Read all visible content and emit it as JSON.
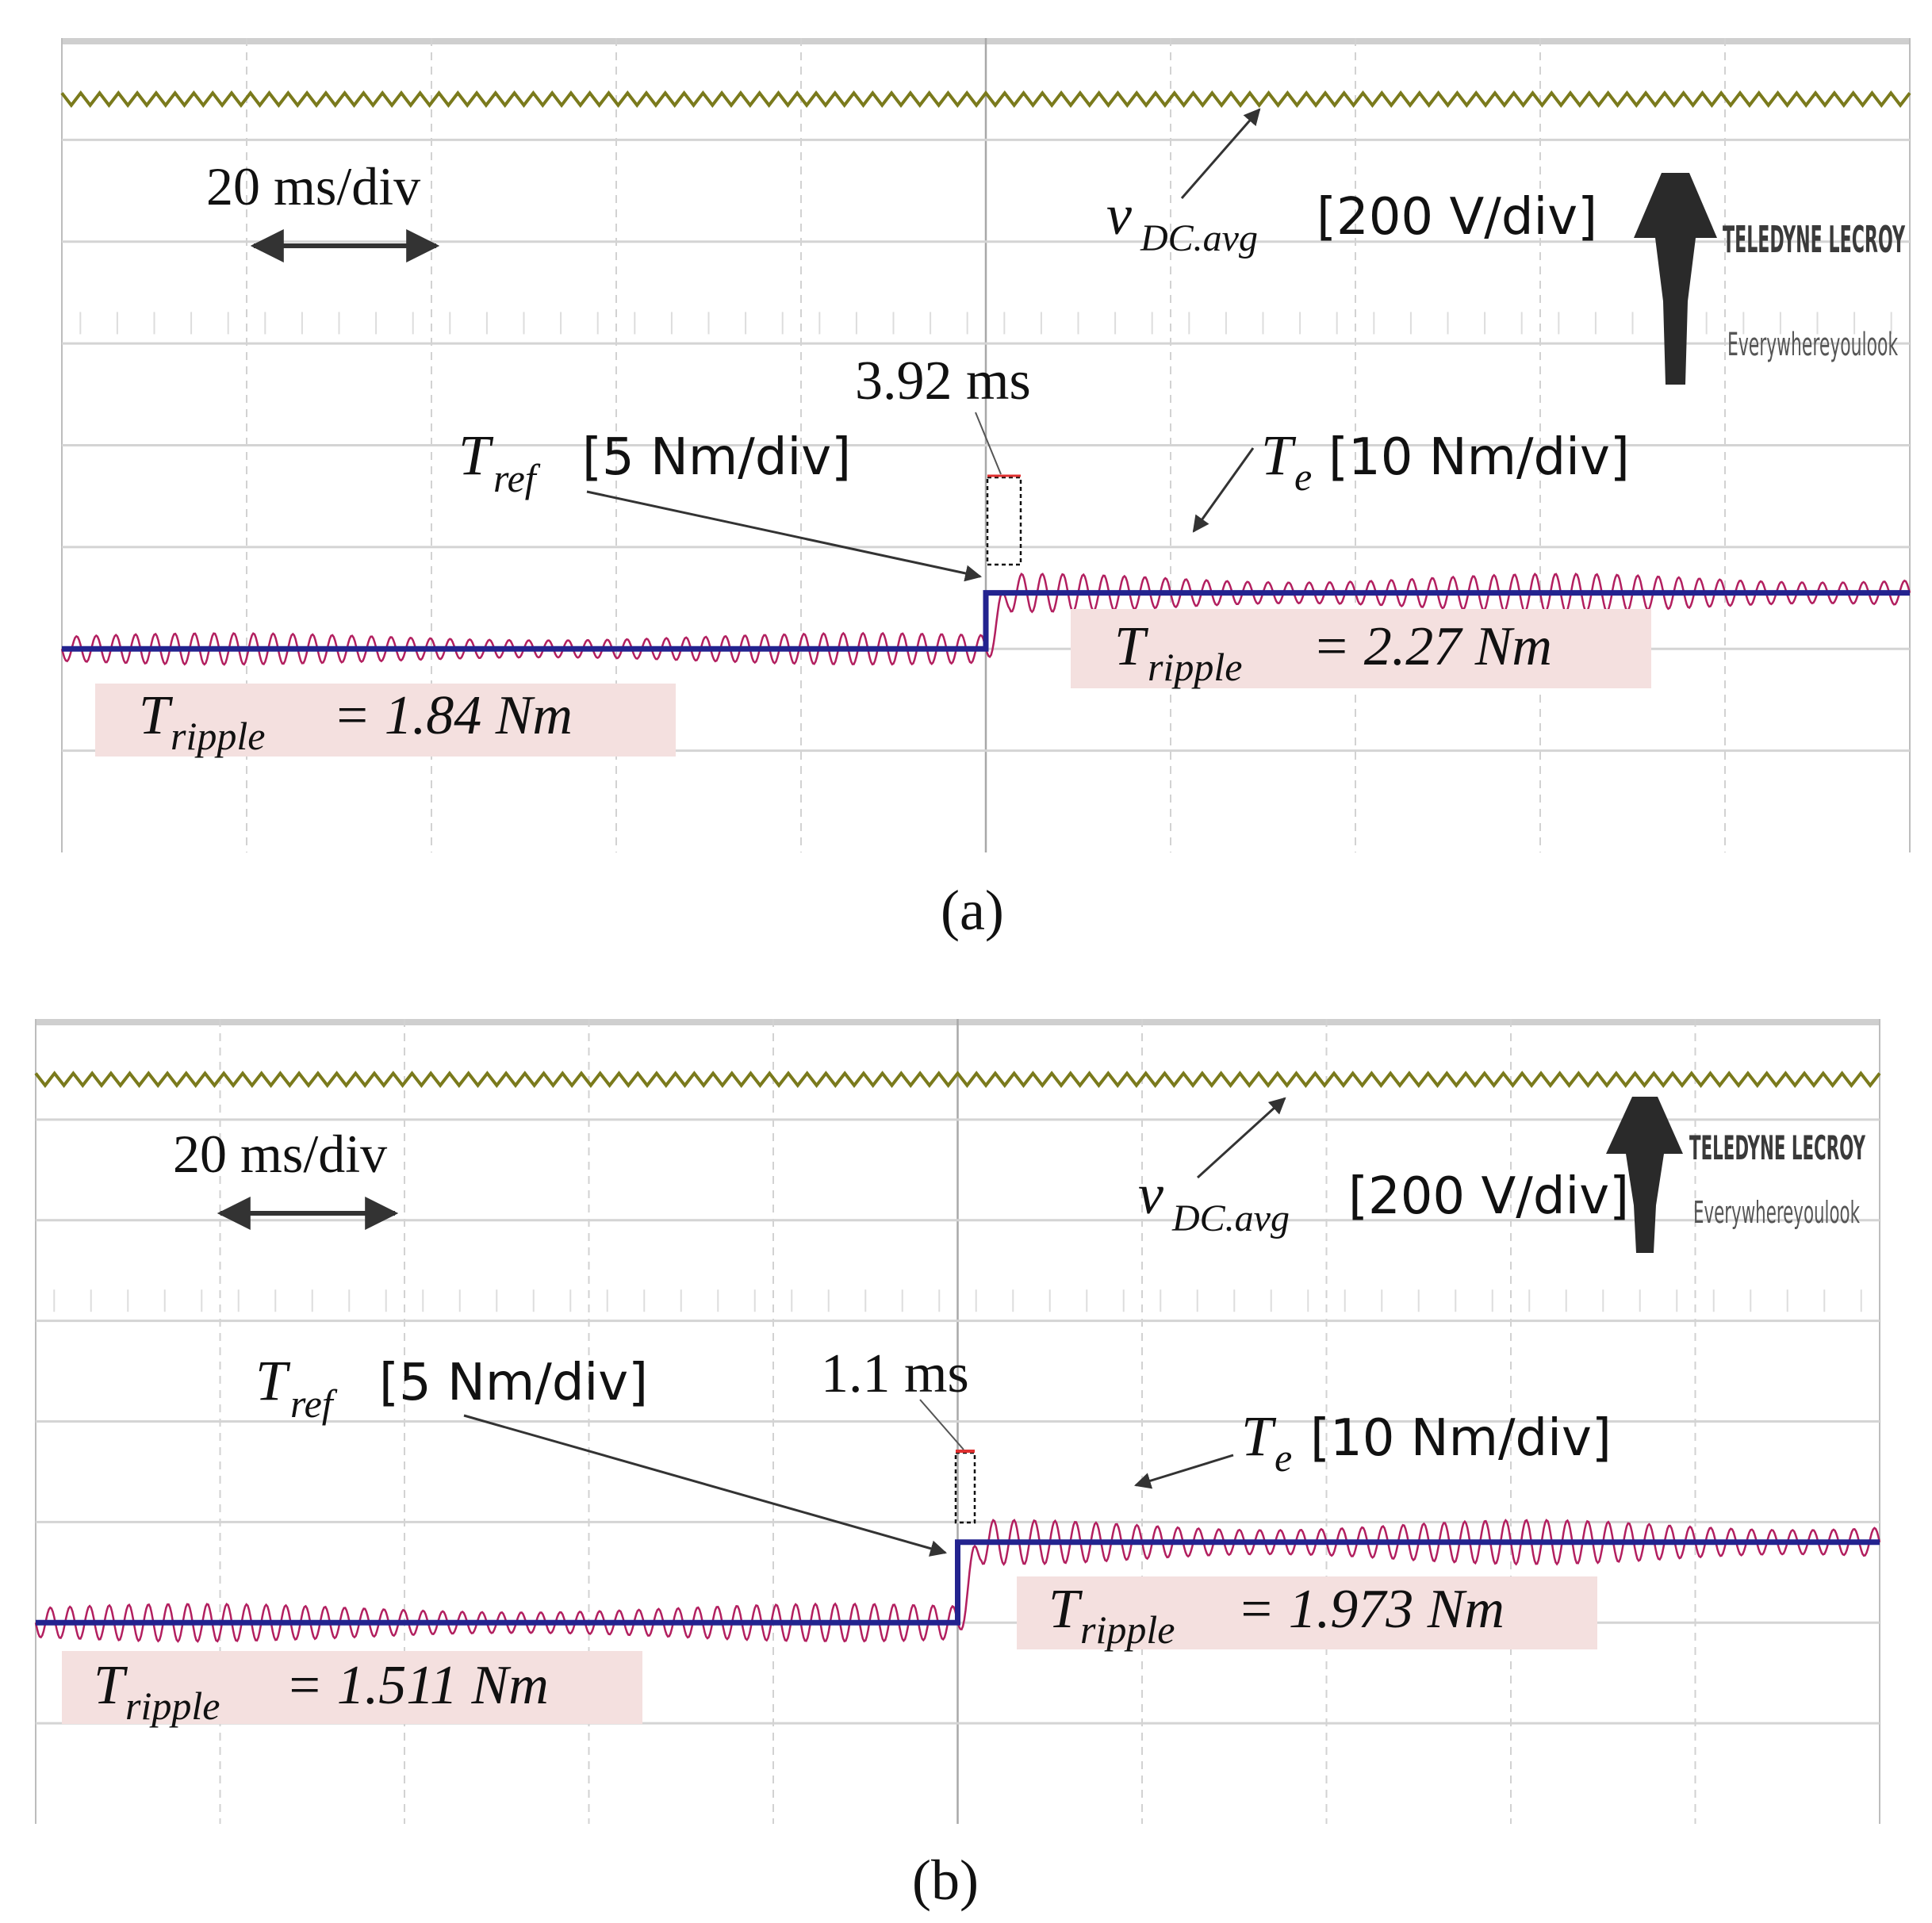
{
  "figure": {
    "panels": [
      {
        "caption": "(a)",
        "timebase_label": "20 ms/div",
        "vdc_label": {
          "symbol": "v",
          "subscript": "DC.avg",
          "scale": "[200 V/div]"
        },
        "tref_label": {
          "symbol": "T",
          "subscript": "ref",
          "scale": "[5 Nm/div]"
        },
        "te_label": {
          "symbol": "T",
          "subscript": "e",
          "scale": "[10 Nm/div]"
        },
        "response_time": "3.92 ms",
        "ripple_before": {
          "symbol": "T",
          "subscript": "ripple",
          "value_text": "= 1.84 Nm"
        },
        "ripple_after": {
          "symbol": "T",
          "subscript": "ripple",
          "value_text": "= 2.27 Nm"
        },
        "logo": {
          "line1": "TELEDYNE LECROY",
          "line2": "Everywhereyoulook"
        }
      },
      {
        "caption": "(b)",
        "timebase_label": "20 ms/div",
        "vdc_label": {
          "symbol": "v",
          "subscript": "DC.avg",
          "scale": "[200 V/div]"
        },
        "tref_label": {
          "symbol": "T",
          "subscript": "ref",
          "scale": "[5 Nm/div]"
        },
        "te_label": {
          "symbol": "T",
          "subscript": "e",
          "scale": "[10 Nm/div]"
        },
        "response_time": "1.1 ms",
        "ripple_before": {
          "symbol": "T",
          "subscript": "ripple",
          "value_text": "= 1.511 Nm"
        },
        "ripple_after": {
          "symbol": "T",
          "subscript": "ripple",
          "value_text": "= 1.973 Nm"
        },
        "logo": {
          "line1": "TELEDYNE LECROY",
          "line2": "Everywhereyoulook"
        }
      }
    ]
  },
  "chart_data": [
    {
      "type": "line",
      "panel": "(a)",
      "time_per_div_ms": 20,
      "x_divisions": 10,
      "y_divisions": 8,
      "grid": true,
      "step_time_div": 5,
      "series": [
        {
          "name": "vDC.avg",
          "scale": "200 V/div",
          "level_div": 7.4,
          "ripple_amp_div": 0.06,
          "ripple_cycles": 98,
          "color": "#7a7a1c"
        },
        {
          "name": "Tref",
          "scale": "5 Nm/div",
          "before_div": 2.0,
          "after_div": 2.55,
          "color": "#23238f"
        },
        {
          "name": "Te",
          "scale": "10 Nm/div",
          "before_div": 2.0,
          "after_div": 2.55,
          "ripple_amp_before_div": 0.14,
          "ripple_amp_after_div": 0.17,
          "ripple_cycles_before": 47,
          "ripple_cycles_after": 45,
          "color": "#b21f5f"
        }
      ],
      "annotations": {
        "response_time_ms": 3.92,
        "ripple_before_Nm": 1.84,
        "ripple_after_Nm": 2.27
      }
    },
    {
      "type": "line",
      "panel": "(b)",
      "time_per_div_ms": 20,
      "x_divisions": 10,
      "y_divisions": 8,
      "grid": true,
      "step_time_div": 5,
      "series": [
        {
          "name": "vDC.avg",
          "scale": "200 V/div",
          "level_div": 7.4,
          "ripple_amp_div": 0.06,
          "ripple_cycles": 98,
          "color": "#7a7a1c"
        },
        {
          "name": "Tref",
          "scale": "5 Nm/div",
          "before_div": 2.0,
          "after_div": 2.8,
          "color": "#23238f"
        },
        {
          "name": "Te",
          "scale": "10 Nm/div",
          "before_div": 2.0,
          "after_div": 2.8,
          "ripple_amp_before_div": 0.17,
          "ripple_amp_after_div": 0.2,
          "ripple_cycles_before": 47,
          "ripple_cycles_after": 45,
          "color": "#b21f5f"
        }
      ],
      "annotations": {
        "response_time_ms": 1.1,
        "ripple_before_Nm": 1.511,
        "ripple_after_Nm": 1.973
      }
    }
  ]
}
